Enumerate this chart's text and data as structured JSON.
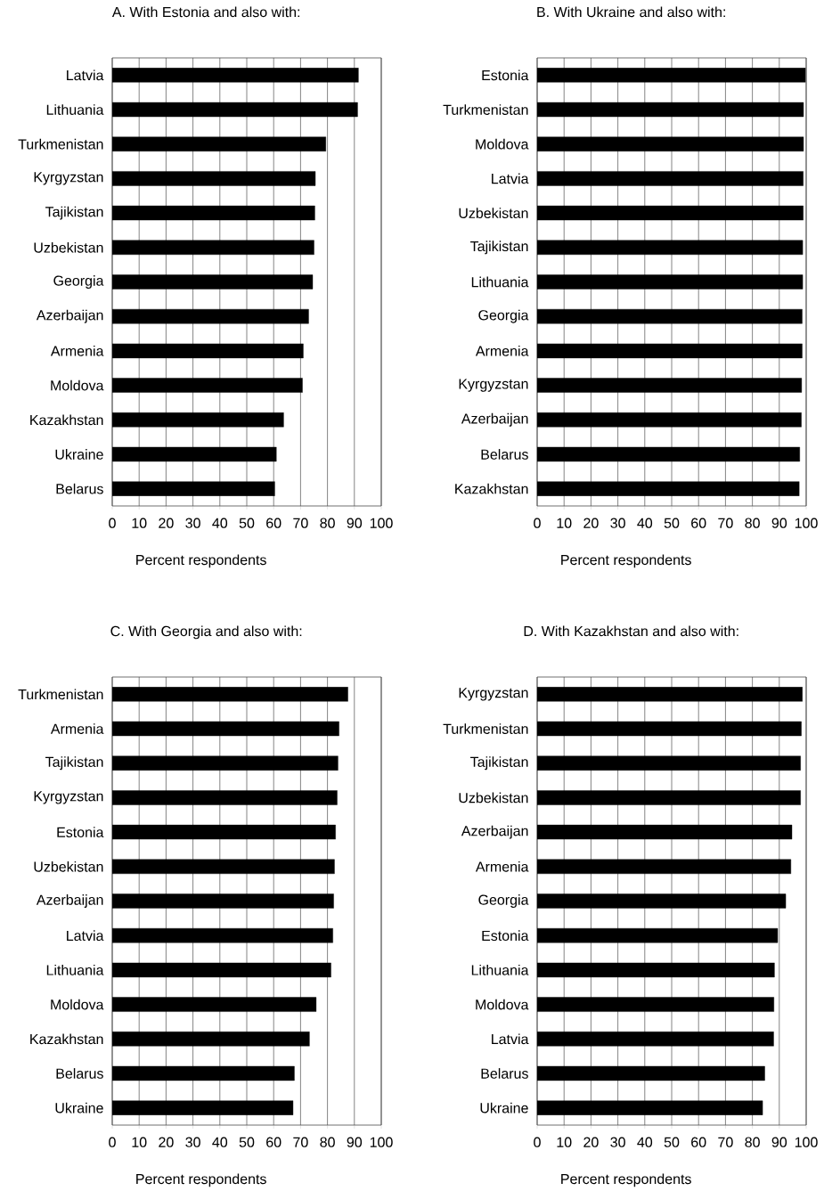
{
  "chart_data": [
    {
      "type": "bar",
      "orientation": "horizontal",
      "title": "A.  With Estonia and also with:",
      "xlabel": "Percent respondents",
      "categories": [
        "Latvia",
        "Lithuania",
        "Turkmenistan",
        "Kyrgyzstan",
        "Tajikistan",
        "Uzbekistan",
        "Georgia",
        "Azerbaijan",
        "Armenia",
        "Moldova",
        "Kazakhstan",
        "Ukraine",
        "Belarus"
      ],
      "values": [
        91.5,
        91.2,
        79.4,
        75.5,
        75.3,
        75.0,
        74.5,
        73.0,
        71.0,
        70.7,
        63.7,
        61.0,
        60.4
      ],
      "color": "#000000",
      "xlim": [
        0,
        100
      ],
      "xticks": [
        0,
        10,
        20,
        30,
        40,
        50,
        60,
        70,
        80,
        90,
        100
      ],
      "grid": "x"
    },
    {
      "type": "bar",
      "orientation": "horizontal",
      "title": "B.  With Ukraine and also with:",
      "xlabel": "Percent respondents",
      "categories": [
        "Estonia",
        "Turkmenistan",
        "Moldova",
        "Latvia",
        "Uzbekistan",
        "Tajikistan",
        "Lithuania",
        "Georgia",
        "Armenia",
        "Kyrgyzstan",
        "Azerbaijan",
        "Belarus",
        "Kazakhstan"
      ],
      "values": [
        99.7,
        99.0,
        99.0,
        98.9,
        98.9,
        98.7,
        98.7,
        98.5,
        98.5,
        98.3,
        98.2,
        97.6,
        97.4
      ],
      "color": "#000000",
      "xlim": [
        0,
        100
      ],
      "xticks": [
        0,
        10,
        20,
        30,
        40,
        50,
        60,
        70,
        80,
        90,
        100
      ],
      "grid": "x"
    },
    {
      "type": "bar",
      "orientation": "horizontal",
      "title": "C.  With Georgia and also with:",
      "xlabel": "Percent respondents",
      "categories": [
        "Turkmenistan",
        "Armenia",
        "Tajikistan",
        "Kyrgyzstan",
        "Estonia",
        "Uzbekistan",
        "Azerbaijan",
        "Latvia",
        "Lithuania",
        "Moldova",
        "Kazakhstan",
        "Belarus",
        "Ukraine"
      ],
      "values": [
        87.6,
        84.3,
        83.9,
        83.6,
        83.0,
        82.6,
        82.3,
        82.0,
        81.3,
        75.8,
        73.3,
        67.7,
        67.2
      ],
      "color": "#000000",
      "xlim": [
        0,
        100
      ],
      "xticks": [
        0,
        10,
        20,
        30,
        40,
        50,
        60,
        70,
        80,
        90,
        100
      ],
      "grid": "x"
    },
    {
      "type": "bar",
      "orientation": "horizontal",
      "title": "D.  With Kazakhstan and also with:",
      "xlabel": "Percent respondents",
      "categories": [
        "Kyrgyzstan",
        "Turkmenistan",
        "Tajikistan",
        "Uzbekistan",
        "Azerbaijan",
        "Armenia",
        "Georgia",
        "Estonia",
        "Lithuania",
        "Moldova",
        "Latvia",
        "Belarus",
        "Ukraine"
      ],
      "values": [
        98.6,
        98.2,
        97.9,
        97.9,
        94.7,
        94.3,
        92.4,
        89.4,
        88.2,
        88.0,
        87.9,
        84.6,
        83.8
      ],
      "color": "#000000",
      "xlim": [
        0,
        100
      ],
      "xticks": [
        0,
        10,
        20,
        30,
        40,
        50,
        60,
        70,
        80,
        90,
        100
      ],
      "grid": "x"
    }
  ]
}
